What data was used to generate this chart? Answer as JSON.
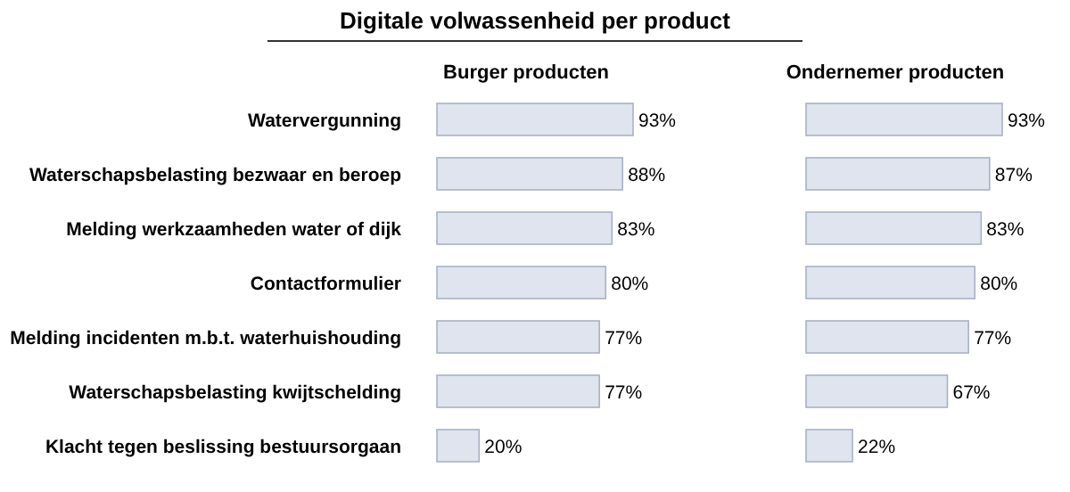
{
  "chart_data": [
    {
      "type": "bar",
      "orientation": "horizontal",
      "title": "Digitale volwassenheid per product",
      "subtitle": "Burger producten",
      "categories": [
        "Watervergunning",
        "Waterschapsbelasting bezwaar en beroep",
        "Melding werkzaamheden water of dijk",
        "Contactformulier",
        "Melding incidenten m.b.t. waterhuishouding",
        "Waterschapsbelasting kwijtschelding",
        "Klacht tegen beslissing bestuursorgaan"
      ],
      "values": [
        93,
        88,
        83,
        80,
        77,
        77,
        20
      ],
      "value_labels": [
        "93%",
        "88%",
        "83%",
        "80%",
        "77%",
        "77%",
        "20%"
      ],
      "color": "#dfe4ee"
    },
    {
      "type": "bar",
      "orientation": "horizontal",
      "title": "Ondernemer producten",
      "categories": [
        null,
        null,
        null,
        null,
        null,
        null,
        null
      ],
      "values": [
        93,
        87,
        83,
        80,
        77,
        67,
        22
      ],
      "value_labels": [
        "93%",
        "87%",
        "83%",
        "80%",
        "77%",
        "67%",
        "22%"
      ],
      "color": "#dfe4ee"
    }
  ]
}
